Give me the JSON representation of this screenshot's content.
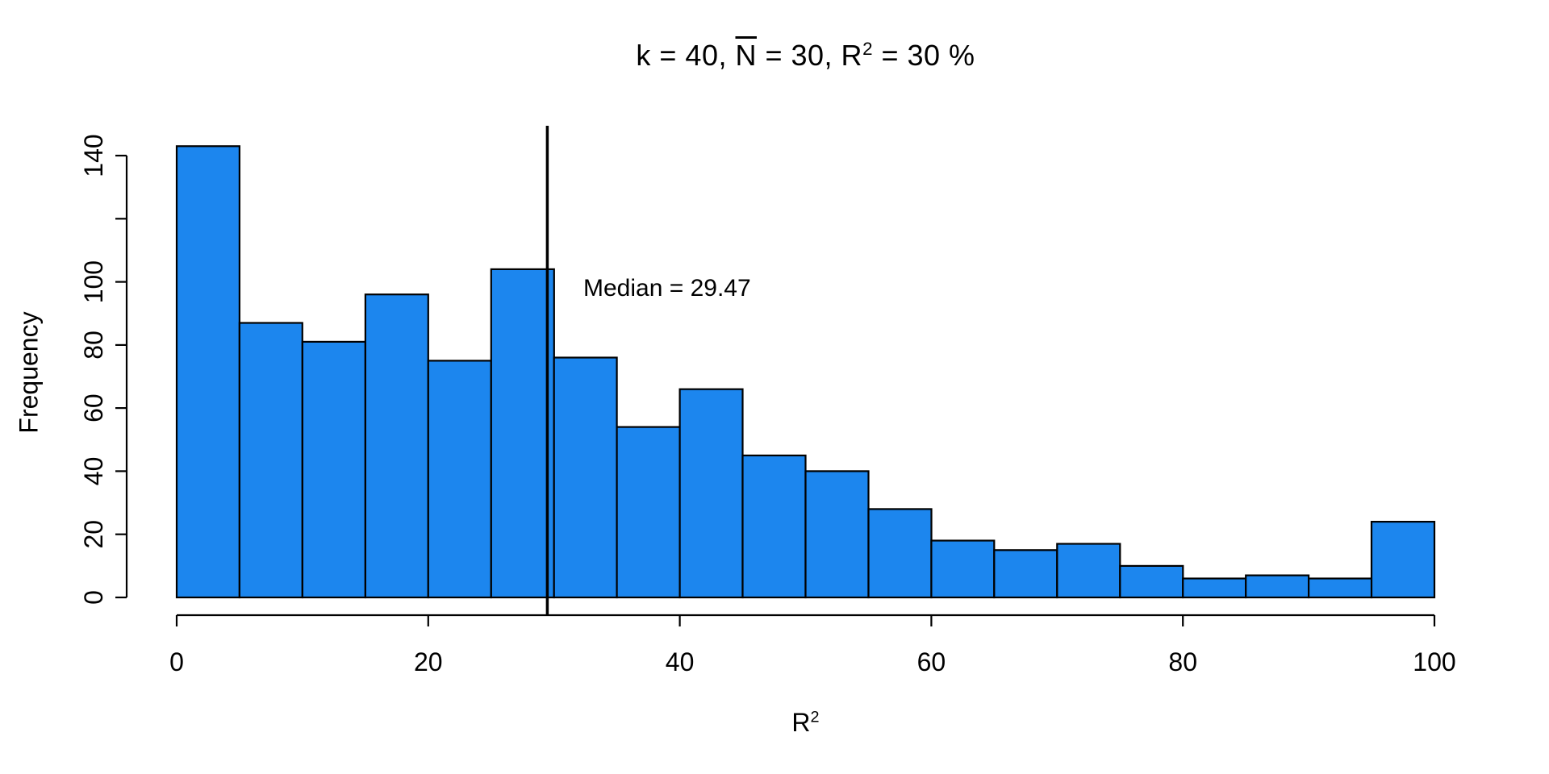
{
  "chart_data": {
    "type": "bar",
    "subtype": "histogram",
    "title": "k = 40, N̄ = 30, R² = 30 %",
    "title_segments": [
      {
        "text": "k = 40, ",
        "style": "plain"
      },
      {
        "text": "N",
        "style": "overline"
      },
      {
        "text": " = 30, R",
        "style": "plain"
      },
      {
        "text": "2",
        "style": "sup"
      },
      {
        "text": " = 30 %",
        "style": "plain"
      }
    ],
    "xlabel": "R²",
    "xlabel_segments": [
      {
        "text": "R",
        "style": "plain"
      },
      {
        "text": "2",
        "style": "sup"
      }
    ],
    "ylabel": "Frequency",
    "xlim": [
      0,
      100
    ],
    "ylim": [
      0,
      140
    ],
    "bin_width": 5,
    "bin_edges": [
      0,
      5,
      10,
      15,
      20,
      25,
      30,
      35,
      40,
      45,
      50,
      55,
      60,
      65,
      70,
      75,
      80,
      85,
      90,
      95,
      100
    ],
    "values": [
      143,
      87,
      81,
      96,
      75,
      104,
      76,
      54,
      66,
      45,
      40,
      28,
      18,
      15,
      17,
      10,
      6,
      7,
      6,
      24
    ],
    "x_ticks": [
      {
        "value": 0,
        "label": "0"
      },
      {
        "value": 20,
        "label": "20"
      },
      {
        "value": 40,
        "label": "40"
      },
      {
        "value": 60,
        "label": "60"
      },
      {
        "value": 80,
        "label": "80"
      },
      {
        "value": 100,
        "label": "100"
      }
    ],
    "y_ticks": [
      {
        "value": 0,
        "label": "0"
      },
      {
        "value": 20,
        "label": "20"
      },
      {
        "value": 40,
        "label": "40"
      },
      {
        "value": 60,
        "label": "60"
      },
      {
        "value": 80,
        "label": "80"
      },
      {
        "value": 100,
        "label": "100"
      },
      {
        "value": 120,
        "label": ""
      },
      {
        "value": 140,
        "label": "140"
      }
    ],
    "median": {
      "value": 29.47,
      "label": "Median = 29.47"
    },
    "colors": {
      "bar_fill": "#1C86EE",
      "bar_stroke": "#000000",
      "axis": "#000000",
      "median_line": "#000000",
      "text": "#000000",
      "background": "#FFFFFF"
    },
    "grid": false,
    "legend": null
  }
}
